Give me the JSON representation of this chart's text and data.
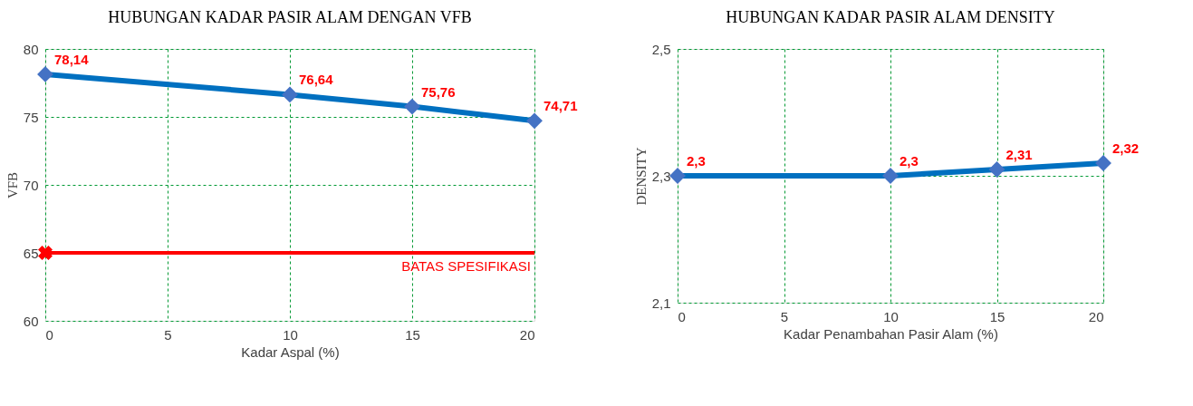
{
  "chart_data": [
    {
      "type": "line",
      "title": "HUBUNGAN KADAR PASIR ALAM DENGAN VFB",
      "xlabel": "Kadar Aspal (%)",
      "ylabel": "VFB",
      "xlim": [
        0,
        20
      ],
      "xticks": [
        0,
        5,
        10,
        15,
        20
      ],
      "ylim": [
        60,
        80
      ],
      "yticks": [
        60,
        65,
        70,
        75,
        80
      ],
      "grid": true,
      "marker": "diamond",
      "line_style": "solid",
      "series": [
        {
          "color": "#0070c0",
          "x": [
            0,
            10,
            15,
            20
          ],
          "values": [
            78.14,
            76.64,
            75.76,
            74.71
          ],
          "value_labels": [
            "78,14",
            "76,64",
            "75,76",
            "74,71"
          ]
        },
        {
          "type": "scatter",
          "color": "#ff0000",
          "marker": "cross",
          "x": [
            0
          ],
          "values": [
            65
          ]
        }
      ],
      "ref_lines": [
        {
          "axis": "y",
          "value": 65,
          "label": "BATAS SPESIFIKASI",
          "color": "#ff0000",
          "line_style": "solid"
        }
      ]
    },
    {
      "type": "line",
      "title": "HUBUNGAN KADAR PASIR ALAM DENSITY",
      "xlabel": "Kadar Penambahan Pasir Alam (%)",
      "ylabel": "DENSITY",
      "xlim": [
        0,
        20
      ],
      "xticks": [
        0,
        5,
        10,
        15,
        20
      ],
      "ylim": [
        2.1,
        2.5
      ],
      "yticks": [
        {
          "value": 2.1,
          "label": "2,1"
        },
        {
          "value": 2.3,
          "label": "2,3"
        },
        {
          "value": 2.5,
          "label": "2,5"
        }
      ],
      "grid": true,
      "marker": "diamond",
      "line_style": "solid",
      "series": [
        {
          "color": "#0070c0",
          "x": [
            0,
            10,
            15,
            20
          ],
          "values": [
            2.3,
            2.3,
            2.31,
            2.32
          ],
          "value_labels": [
            "2,3",
            "2,3",
            "2,31",
            "2,32"
          ]
        }
      ]
    }
  ]
}
